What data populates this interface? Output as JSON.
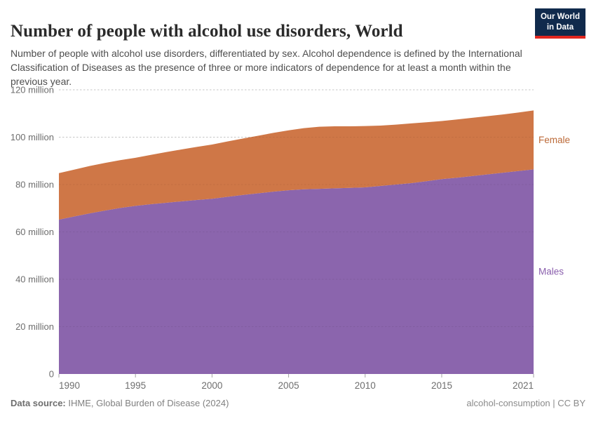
{
  "header": {
    "title": "Number of people with alcohol use disorders, World",
    "subtitle": "Number of people with alcohol use disorders, differentiated by sex. Alcohol dependence is defined by the International Classification of Diseases as the presence of three or more indicators of dependence for at least a month within the previous year.",
    "logo": {
      "line1": "Our World",
      "line2": "in Data",
      "bg_color": "#102a4c",
      "accent_color": "#e0261f"
    }
  },
  "footer": {
    "source_label": "Data source:",
    "source_text": " IHME, Global Burden of Disease (2024)",
    "credit": "alcohol-consumption | CC BY"
  },
  "chart_data": {
    "type": "area",
    "stacked": true,
    "title": "Number of people with alcohol use disorders, World",
    "xlabel": "",
    "ylabel": "",
    "unit": "million people",
    "grid": true,
    "legend_position": "right",
    "xlim": [
      1990,
      2021
    ],
    "ylim": [
      0,
      120
    ],
    "x": [
      1990,
      1991,
      1992,
      1993,
      1994,
      1995,
      1996,
      1997,
      1998,
      1999,
      2000,
      2001,
      2002,
      2003,
      2004,
      2005,
      2006,
      2007,
      2008,
      2009,
      2010,
      2011,
      2012,
      2013,
      2014,
      2015,
      2016,
      2017,
      2018,
      2019,
      2020,
      2021
    ],
    "series": [
      {
        "name": "Males",
        "color": "#8b65ad",
        "label_color": "#8a5fad",
        "values": [
          65.2,
          66.5,
          67.8,
          69.0,
          70.1,
          71.0,
          71.7,
          72.3,
          72.9,
          73.5,
          74.0,
          74.8,
          75.6,
          76.3,
          77.0,
          77.6,
          78.0,
          78.2,
          78.4,
          78.6,
          78.8,
          79.4,
          80.0,
          80.6,
          81.4,
          82.3,
          82.9,
          83.6,
          84.3,
          85.0,
          85.7,
          86.4
        ]
      },
      {
        "name": "Female",
        "color": "#cf7747",
        "label_color": "#bc6a38",
        "values": [
          19.6,
          19.8,
          20.0,
          20.1,
          20.2,
          20.3,
          20.8,
          21.4,
          21.9,
          22.4,
          22.9,
          23.4,
          23.8,
          24.3,
          24.8,
          25.3,
          25.8,
          26.2,
          26.2,
          26.0,
          25.9,
          25.5,
          25.3,
          25.2,
          24.9,
          24.5,
          24.6,
          24.6,
          24.6,
          24.6,
          24.7,
          24.9
        ]
      }
    ],
    "x_ticks": [
      {
        "value": 1990,
        "label": "1990"
      },
      {
        "value": 1995,
        "label": "1995"
      },
      {
        "value": 2000,
        "label": "2000"
      },
      {
        "value": 2005,
        "label": "2005"
      },
      {
        "value": 2010,
        "label": "2010"
      },
      {
        "value": 2015,
        "label": "2015"
      },
      {
        "value": 2021,
        "label": "2021"
      }
    ],
    "y_ticks": [
      {
        "value": 0,
        "label": "0"
      },
      {
        "value": 20,
        "label": "20 million"
      },
      {
        "value": 40,
        "label": "40 million"
      },
      {
        "value": 60,
        "label": "60 million"
      },
      {
        "value": 80,
        "label": "80 million"
      },
      {
        "value": 100,
        "label": "100 million"
      },
      {
        "value": 120,
        "label": "120 million"
      }
    ],
    "style": {
      "gridline_color": "#d6d6d6",
      "tick_text_color": "#6e6e6e",
      "tick_mark_color": "#a3a3a3"
    }
  }
}
